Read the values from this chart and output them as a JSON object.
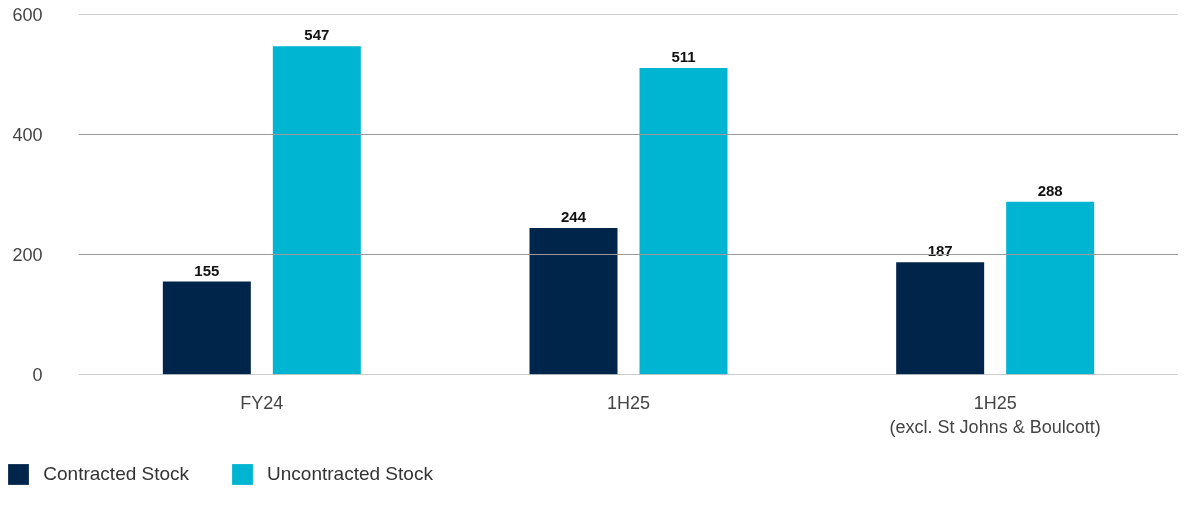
{
  "chart_data": {
    "type": "bar",
    "categories": [
      "FY24",
      "1H25",
      "1H25\n(excl. St Johns & Boulcott)"
    ],
    "series": [
      {
        "name": "Contracted Stock",
        "color": "#00254a",
        "values": [
          155,
          244,
          187
        ]
      },
      {
        "name": "Uncontracted Stock",
        "color": "#00b5d1",
        "values": [
          547,
          511,
          288
        ]
      }
    ],
    "ylim": [
      0,
      600
    ],
    "yticks": [
      0,
      200,
      400,
      600
    ],
    "grid": "y",
    "legend": "bottom left",
    "data_labels": true
  }
}
